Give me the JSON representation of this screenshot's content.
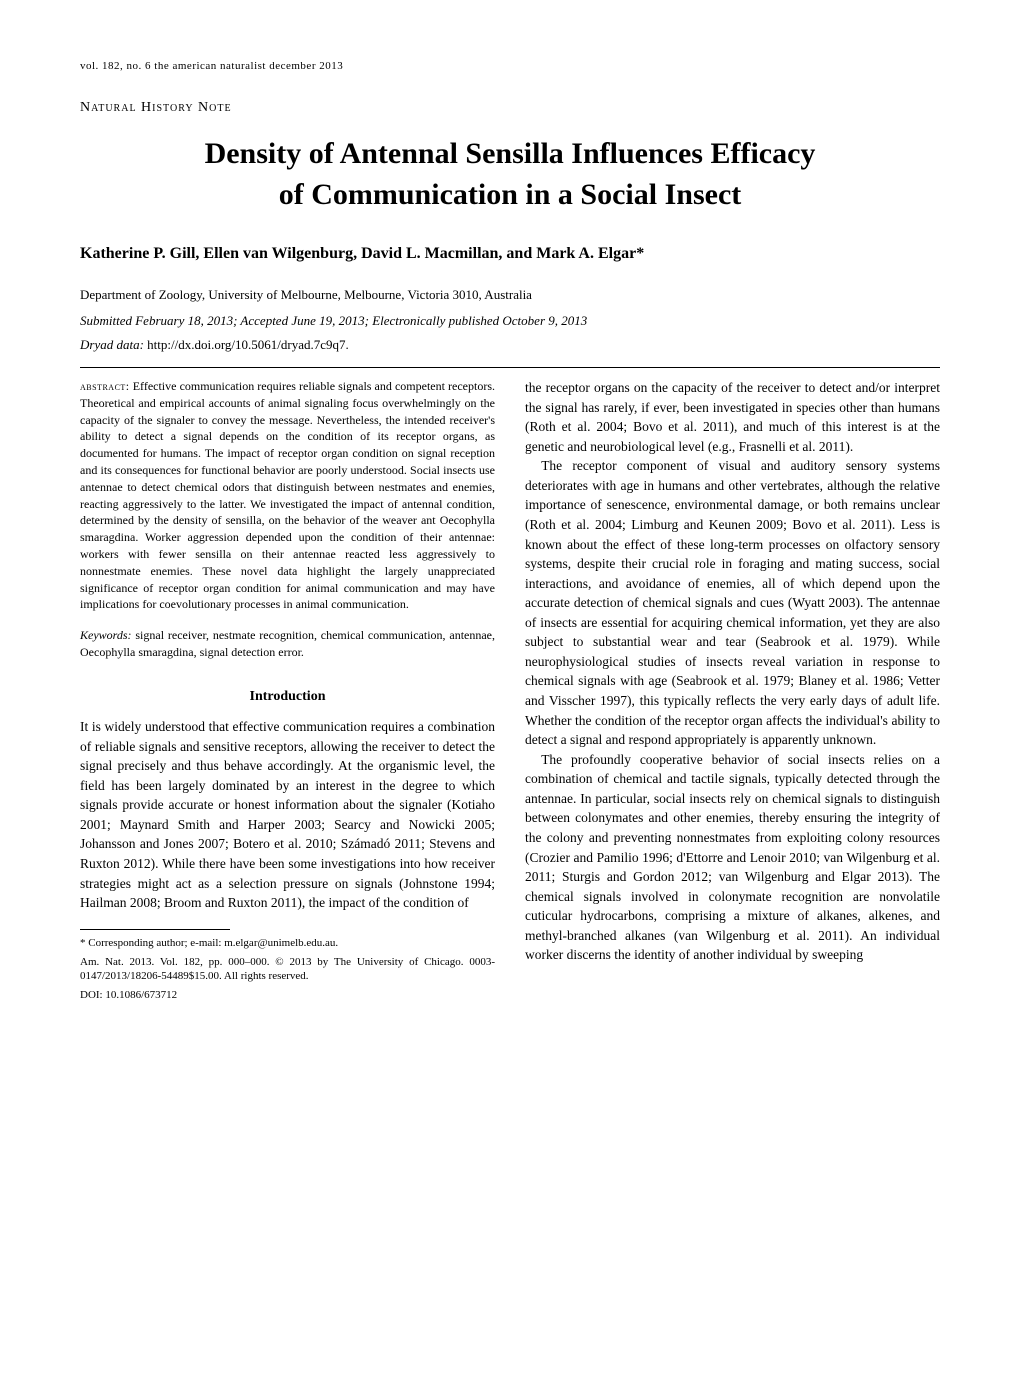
{
  "header": {
    "line": "vol. 182, no. 6   the american naturalist   december 2013"
  },
  "note_label": "Natural History Note",
  "title_line1": "Density of Antennal Sensilla Influences Efficacy",
  "title_line2": "of Communication in a Social Insect",
  "authors": "Katherine P. Gill, Ellen van Wilgenburg, David L. Macmillan, and Mark A. Elgar*",
  "affiliation": "Department of Zoology, University of Melbourne, Melbourne, Victoria 3010, Australia",
  "submitted": "Submitted February 18, 2013; Accepted June 19, 2013; Electronically published October 9, 2013",
  "dryad_label": "Dryad data:",
  "dryad_url": "http://dx.doi.org/10.5061/dryad.7c9q7.",
  "abstract_label": "abstract:",
  "abstract_text": "Effective communication requires reliable signals and competent receptors. Theoretical and empirical accounts of animal signaling focus overwhelmingly on the capacity of the signaler to convey the message. Nevertheless, the intended receiver's ability to detect a signal depends on the condition of its receptor organs, as documented for humans. The impact of receptor organ condition on signal reception and its consequences for functional behavior are poorly understood. Social insects use antennae to detect chemical odors that distinguish between nestmates and enemies, reacting aggressively to the latter. We investigated the impact of antennal condition, determined by the density of sensilla, on the behavior of the weaver ant Oecophylla smaragdina. Worker aggression depended upon the condition of their antennae: workers with fewer sensilla on their antennae reacted less aggressively to nonnestmate enemies. These novel data highlight the largely unappreciated significance of receptor organ condition for animal communication and may have implications for coevolutionary processes in animal communication.",
  "keywords_label": "Keywords:",
  "keywords_text": "signal receiver, nestmate recognition, chemical communication, antennae, Oecophylla smaragdina, signal detection error.",
  "intro_heading": "Introduction",
  "intro_para": "It is widely understood that effective communication requires a combination of reliable signals and sensitive receptors, allowing the receiver to detect the signal precisely and thus behave accordingly. At the organismic level, the field has been largely dominated by an interest in the degree to which signals provide accurate or honest information about the signaler (Kotiaho 2001; Maynard Smith and Harper 2003; Searcy and Nowicki 2005; Johansson and Jones 2007; Botero et al. 2010; Számadó 2011; Stevens and Ruxton 2012). While there have been some investigations into how receiver strategies might act as a selection pressure on signals (Johnstone 1994; Hailman 2008; Broom and Ruxton 2011), the impact of the condition of",
  "right_para1": "the receptor organs on the capacity of the receiver to detect and/or interpret the signal has rarely, if ever, been investigated in species other than humans (Roth et al. 2004; Bovo et al. 2011), and much of this interest is at the genetic and neurobiological level (e.g., Frasnelli et al. 2011).",
  "right_para2": "The receptor component of visual and auditory sensory systems deteriorates with age in humans and other vertebrates, although the relative importance of senescence, environmental damage, or both remains unclear (Roth et al. 2004; Limburg and Keunen 2009; Bovo et al. 2011). Less is known about the effect of these long-term processes on olfactory sensory systems, despite their crucial role in foraging and mating success, social interactions, and avoidance of enemies, all of which depend upon the accurate detection of chemical signals and cues (Wyatt 2003). The antennae of insects are essential for acquiring chemical information, yet they are also subject to substantial wear and tear (Seabrook et al. 1979). While neurophysiological studies of insects reveal variation in response to chemical signals with age (Seabrook et al. 1979; Blaney et al. 1986; Vetter and Visscher 1997), this typically reflects the very early days of adult life. Whether the condition of the receptor organ affects the individual's ability to detect a signal and respond appropriately is apparently unknown.",
  "right_para3": "The profoundly cooperative behavior of social insects relies on a combination of chemical and tactile signals, typically detected through the antennae. In particular, social insects rely on chemical signals to distinguish between colonymates and other enemies, thereby ensuring the integrity of the colony and preventing nonnestmates from exploiting colony resources (Crozier and Pamilio 1996; d'Ettorre and Lenoir 2010; van Wilgenburg et al. 2011; Sturgis and Gordon 2012; van Wilgenburg and Elgar 2013). The chemical signals involved in colonymate recognition are nonvolatile cuticular hydrocarbons, comprising a mixture of alkanes, alkenes, and methyl-branched alkanes (van Wilgenburg et al. 2011). An individual worker discerns the identity of another individual by sweeping",
  "footnotes": {
    "corresponding": "* Corresponding author; e-mail: m.elgar@unimelb.edu.au.",
    "citation": "Am. Nat. 2013. Vol. 182, pp. 000–000. © 2013 by The University of Chicago. 0003-0147/2013/18206-54489$15.00. All rights reserved.",
    "doi": "DOI: 10.1086/673712"
  }
}
